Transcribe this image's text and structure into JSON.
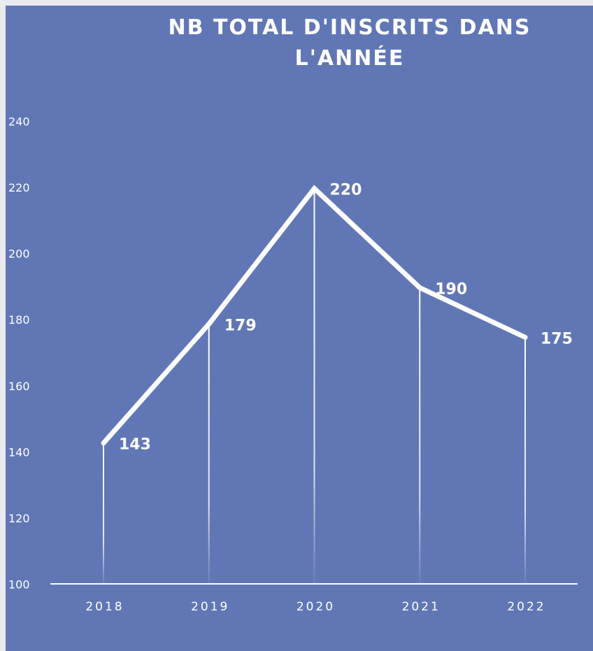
{
  "chart_data": {
    "type": "line",
    "title": "NB TOTAL D'INSCRITS DANS L'ANNÉE",
    "categories": [
      "2018",
      "2019",
      "2020",
      "2021",
      "2022"
    ],
    "values": [
      143,
      179,
      220,
      190,
      175
    ],
    "color": "#ffffff",
    "ylim": [
      100,
      240
    ],
    "yticks": [
      100,
      120,
      140,
      160,
      180,
      200,
      220,
      240
    ],
    "grid": false
  }
}
